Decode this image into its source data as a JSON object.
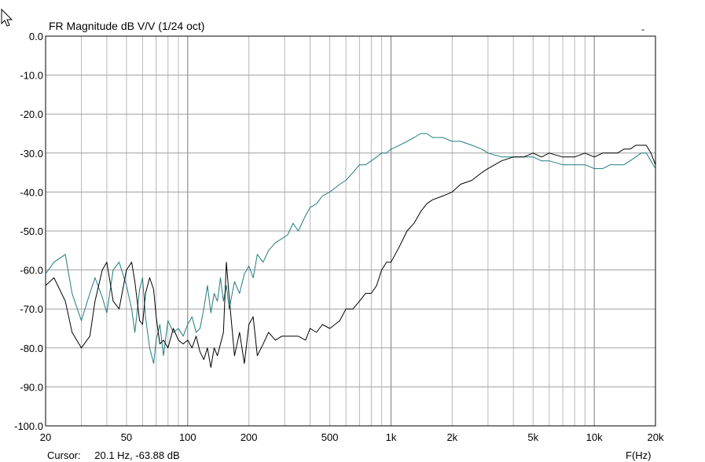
{
  "chart_data": {
    "type": "line",
    "title": "FR Magnitude dB V/V (1/24 oct)",
    "xlabel": "F(Hz)",
    "x_scale": "log",
    "xlim": [
      20,
      20000
    ],
    "ylim": [
      -100,
      0
    ],
    "grid": true,
    "x_ticks": [
      {
        "value": 20,
        "label": "20"
      },
      {
        "value": 50,
        "label": "50"
      },
      {
        "value": 100,
        "label": "100"
      },
      {
        "value": 200,
        "label": "200"
      },
      {
        "value": 500,
        "label": "500"
      },
      {
        "value": 1000,
        "label": "1k"
      },
      {
        "value": 2000,
        "label": "2k"
      },
      {
        "value": 5000,
        "label": "5k"
      },
      {
        "value": 10000,
        "label": "10k"
      },
      {
        "value": 20000,
        "label": "20k"
      }
    ],
    "y_ticks": [
      {
        "value": 0,
        "label": "0.0"
      },
      {
        "value": -10,
        "label": "-10.0"
      },
      {
        "value": -20,
        "label": "-20.0"
      },
      {
        "value": -30,
        "label": "-30.0"
      },
      {
        "value": -40,
        "label": "-40.0"
      },
      {
        "value": -50,
        "label": "-50.0"
      },
      {
        "value": -60,
        "label": "-60.0"
      },
      {
        "value": -70,
        "label": "-70.0"
      },
      {
        "value": -80,
        "label": "-80.0"
      },
      {
        "value": -90,
        "label": "-90.0"
      },
      {
        "value": -100,
        "label": "-100.0"
      }
    ],
    "series": [
      {
        "color": "#1e7b80",
        "x": [
          20,
          22,
          25,
          27,
          30,
          33,
          35,
          38,
          40,
          43,
          46,
          50,
          53,
          55,
          58,
          60,
          62,
          65,
          68,
          70,
          73,
          76,
          80,
          85,
          90,
          95,
          100,
          105,
          110,
          115,
          120,
          125,
          130,
          135,
          140,
          145,
          150,
          155,
          160,
          170,
          180,
          190,
          200,
          210,
          220,
          235,
          250,
          270,
          290,
          310,
          330,
          350,
          380,
          400,
          430,
          460,
          500,
          530,
          560,
          600,
          650,
          700,
          750,
          800,
          850,
          900,
          950,
          1000,
          1100,
          1200,
          1300,
          1400,
          1500,
          1600,
          1800,
          2000,
          2200,
          2500,
          2800,
          3000,
          3500,
          4000,
          4500,
          5000,
          5500,
          6000,
          7000,
          8000,
          9000,
          10000,
          11000,
          12000,
          13000,
          14000,
          15000,
          16000,
          17000,
          18000,
          19000,
          20000
        ],
        "y": [
          -61,
          -58,
          -56,
          -66,
          -73,
          -66,
          -62,
          -67,
          -71,
          -60,
          -58,
          -64,
          -70,
          -76,
          -65,
          -62,
          -72,
          -80,
          -84,
          -78,
          -74,
          -82,
          -73,
          -76,
          -75,
          -77,
          -74,
          -72,
          -76,
          -75,
          -70,
          -64,
          -71,
          -66,
          -68,
          -62,
          -68,
          -64,
          -70,
          -63,
          -66,
          -61,
          -59,
          -62,
          -56,
          -58,
          -55,
          -53,
          -52,
          -51,
          -48,
          -50,
          -46,
          -44,
          -43,
          -41,
          -40,
          -39,
          -38,
          -37,
          -35,
          -33,
          -33,
          -32,
          -31,
          -30,
          -30,
          -29,
          -28,
          -27,
          -26,
          -25,
          -25,
          -26,
          -26,
          -27,
          -27,
          -28,
          -29,
          -30,
          -31,
          -31,
          -31,
          -31,
          -32,
          -32,
          -33,
          -33,
          -33,
          -34,
          -34,
          -33,
          -33,
          -33,
          -32,
          -31,
          -30,
          -30,
          -32,
          -34
        ]
      },
      {
        "color": "#000000",
        "x": [
          20,
          22,
          25,
          27,
          30,
          33,
          35,
          38,
          40,
          43,
          46,
          50,
          53,
          55,
          58,
          60,
          62,
          65,
          68,
          70,
          73,
          76,
          80,
          85,
          90,
          95,
          100,
          105,
          110,
          115,
          120,
          125,
          130,
          135,
          140,
          145,
          150,
          155,
          160,
          170,
          180,
          190,
          200,
          210,
          220,
          235,
          250,
          270,
          290,
          310,
          330,
          350,
          380,
          400,
          430,
          460,
          500,
          530,
          560,
          600,
          650,
          700,
          750,
          800,
          850,
          900,
          950,
          1000,
          1100,
          1200,
          1300,
          1400,
          1500,
          1600,
          1800,
          2000,
          2200,
          2500,
          2800,
          3000,
          3500,
          4000,
          4500,
          5000,
          5500,
          6000,
          7000,
          8000,
          9000,
          10000,
          11000,
          12000,
          13000,
          14000,
          15000,
          16000,
          17000,
          18000,
          19000,
          20000
        ],
        "y": [
          -64,
          -62,
          -68,
          -76,
          -80,
          -77,
          -68,
          -60,
          -58,
          -68,
          -70,
          -60,
          -58,
          -63,
          -73,
          -74,
          -66,
          -62,
          -65,
          -72,
          -79,
          -78,
          -80,
          -75,
          -78,
          -79,
          -78,
          -80,
          -77,
          -81,
          -83,
          -80,
          -85,
          -80,
          -82,
          -79,
          -76,
          -58,
          -67,
          -82,
          -76,
          -84,
          -74,
          -72,
          -82,
          -79,
          -76,
          -78,
          -77,
          -77,
          -77,
          -77,
          -78,
          -75,
          -76,
          -74,
          -75,
          -74,
          -73,
          -70,
          -70,
          -68,
          -66,
          -66,
          -64,
          -60,
          -58,
          -58,
          -54,
          -50,
          -48,
          -45,
          -43,
          -42,
          -41,
          -40,
          -38,
          -37,
          -35,
          -34,
          -32,
          -31,
          -31,
          -30,
          -31,
          -30,
          -31,
          -31,
          -30,
          -31,
          -30,
          -30,
          -30,
          -29,
          -29,
          -28,
          -28,
          -28,
          -30,
          -33
        ]
      }
    ]
  },
  "cursor": {
    "label": "Cursor:",
    "value": "20.1 Hz, -63.88 dB"
  },
  "corner_mark": "-"
}
